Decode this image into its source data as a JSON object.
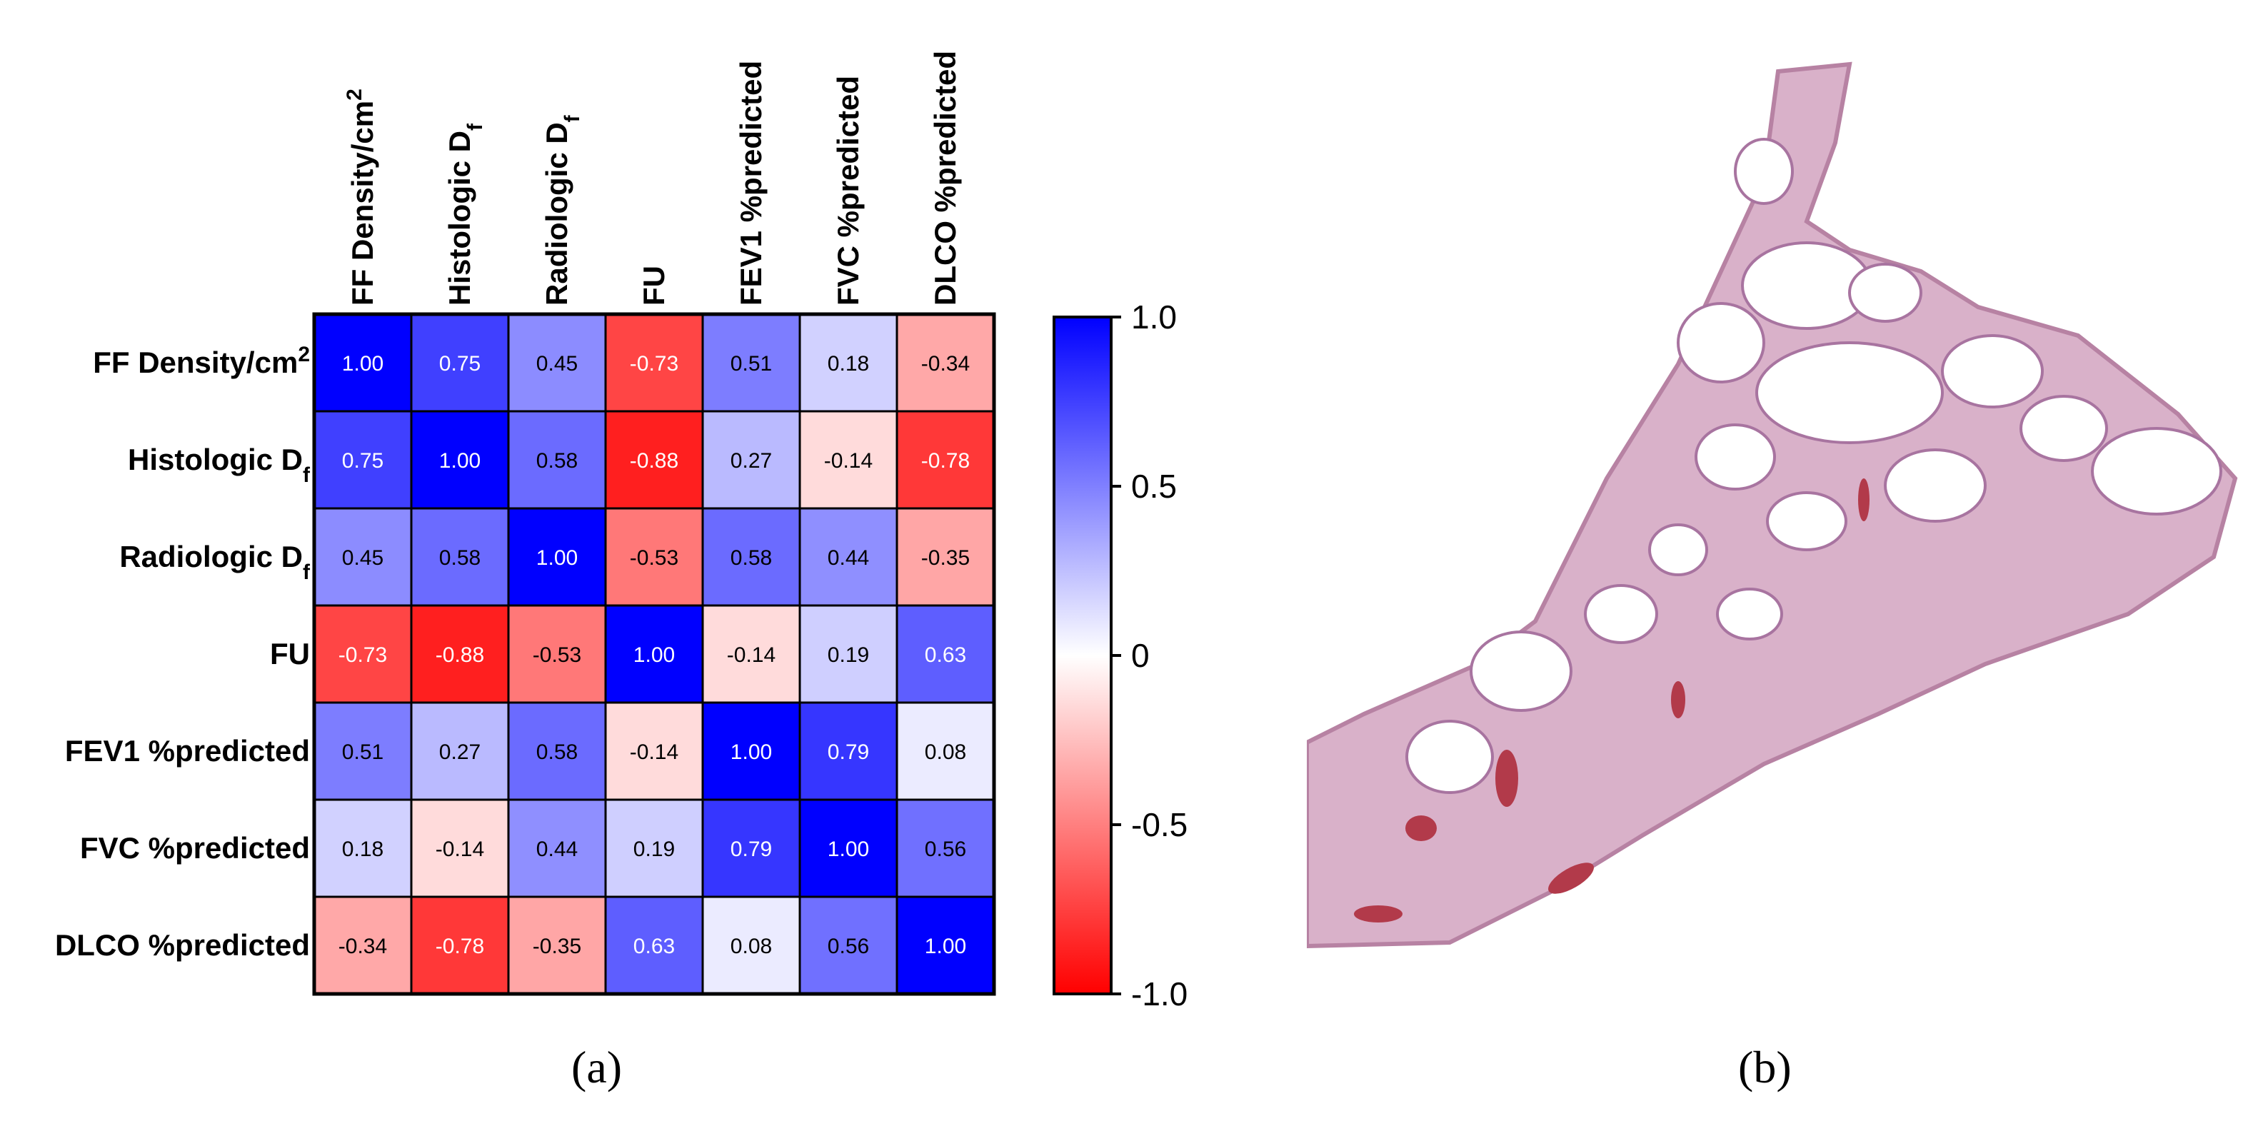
{
  "chart_data": {
    "type": "heatmap",
    "title": "",
    "variables": [
      {
        "name": "FF Density/cm",
        "sup": "2",
        "sub": ""
      },
      {
        "name": "Histologic D",
        "sup": "",
        "sub": "f"
      },
      {
        "name": "Radiologic D",
        "sup": "",
        "sub": "f"
      },
      {
        "name": "FU",
        "sup": "",
        "sub": ""
      },
      {
        "name": "FEV1 %predicted",
        "sup": "",
        "sub": ""
      },
      {
        "name": "FVC %predicted",
        "sup": "",
        "sub": ""
      },
      {
        "name": "DLCO %predicted",
        "sup": "",
        "sub": ""
      }
    ],
    "matrix": [
      [
        1.0,
        0.75,
        0.45,
        -0.73,
        0.51,
        0.18,
        -0.34
      ],
      [
        0.75,
        1.0,
        0.58,
        -0.88,
        0.27,
        -0.14,
        -0.78
      ],
      [
        0.45,
        0.58,
        1.0,
        -0.53,
        0.58,
        0.44,
        -0.35
      ],
      [
        -0.73,
        -0.88,
        -0.53,
        1.0,
        -0.14,
        0.19,
        0.63
      ],
      [
        0.51,
        0.27,
        0.58,
        -0.14,
        1.0,
        0.79,
        0.08
      ],
      [
        0.18,
        -0.14,
        0.44,
        0.19,
        0.79,
        1.0,
        0.56
      ],
      [
        -0.34,
        -0.78,
        -0.35,
        0.63,
        0.08,
        0.56,
        1.0
      ]
    ],
    "colorbar": {
      "range": [
        -1.0,
        1.0
      ],
      "ticks": [
        "1.0",
        "0.5",
        "0",
        "-0.5",
        "-1.0"
      ],
      "tick_values": [
        1.0,
        0.5,
        0.0,
        -0.5,
        -1.0
      ],
      "colors": {
        "negative": "#ff0000",
        "zero": "#ffffff",
        "positive": "#0000ff"
      }
    }
  },
  "panels": {
    "a_label": "(a)",
    "b_label": "(b)"
  },
  "image_b": {
    "icon": "lung-histology-section-image",
    "colors": {
      "tissue": "#cfa0bd",
      "vessel": "#b23a4a",
      "background": "#ffffff"
    }
  }
}
